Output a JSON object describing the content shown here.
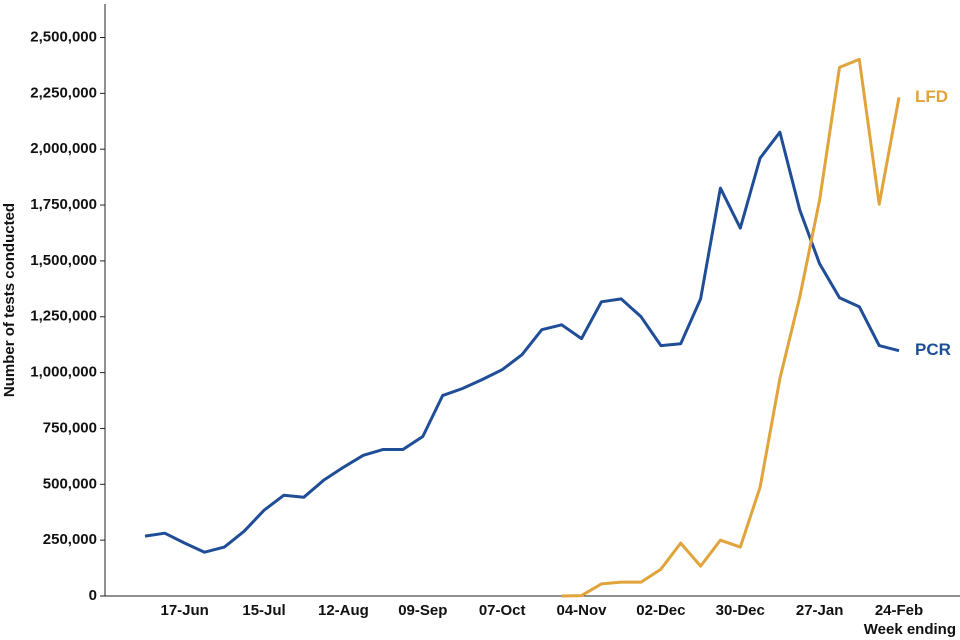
{
  "chart_data": {
    "type": "line",
    "y_label": "Number of tests conducted",
    "x_label": "Week ending",
    "categories": [
      null,
      null,
      "17-Jun",
      null,
      null,
      null,
      "15-Jul",
      null,
      null,
      null,
      "12-Aug",
      null,
      null,
      null,
      "09-Sep",
      null,
      null,
      null,
      "07-Oct",
      null,
      null,
      null,
      "04-Nov",
      null,
      null,
      null,
      "02-Dec",
      null,
      null,
      null,
      "30-Dec",
      null,
      null,
      null,
      "27-Jan",
      null,
      null,
      null,
      "24-Feb"
    ],
    "series": [
      {
        "name": "PCR",
        "color": "#1f4e96",
        "values": [
          268000,
          281000,
          237000,
          196000,
          219000,
          290000,
          384000,
          451000,
          442000,
          518000,
          576000,
          630000,
          656000,
          656000,
          714000,
          897000,
          929000,
          969000,
          1013000,
          1080000,
          1192000,
          1214000,
          1152000,
          1317000,
          1330000,
          1250000,
          1121000,
          1129000,
          1330000,
          1826000,
          1647000,
          1960000,
          2076000,
          1728000,
          1487000,
          1335000,
          1295000,
          1121000,
          1098000
        ]
      },
      {
        "name": "LFD",
        "color": "#e0a43a",
        "values": [
          null,
          null,
          null,
          null,
          null,
          null,
          null,
          null,
          null,
          null,
          null,
          null,
          null,
          null,
          null,
          null,
          null,
          null,
          null,
          null,
          null,
          0,
          2000,
          54000,
          62000,
          62000,
          120000,
          237000,
          134000,
          250000,
          219000,
          487000,
          973000,
          1339000,
          1772000,
          2366000,
          2402000,
          1754000,
          2232000
        ]
      }
    ],
    "ylim": [
      0,
      2650000
    ],
    "yticks": [
      0,
      {
        "value": 250000,
        "label": "250,000"
      },
      {
        "value": 500000,
        "label": "500,000"
      },
      {
        "value": 750000,
        "label": "750,000"
      },
      {
        "value": 1000000,
        "label": "1,000,000"
      },
      {
        "value": 1250000,
        "label": "1,250,000"
      },
      {
        "value": 1500000,
        "label": "1,500,000"
      },
      {
        "value": 1750000,
        "label": "1,750,000"
      },
      {
        "value": 2000000,
        "label": "2,000,000"
      },
      {
        "value": 2250000,
        "label": "2,250,000"
      },
      {
        "value": 2500000,
        "label": "2,500,000"
      }
    ],
    "grid": false
  }
}
